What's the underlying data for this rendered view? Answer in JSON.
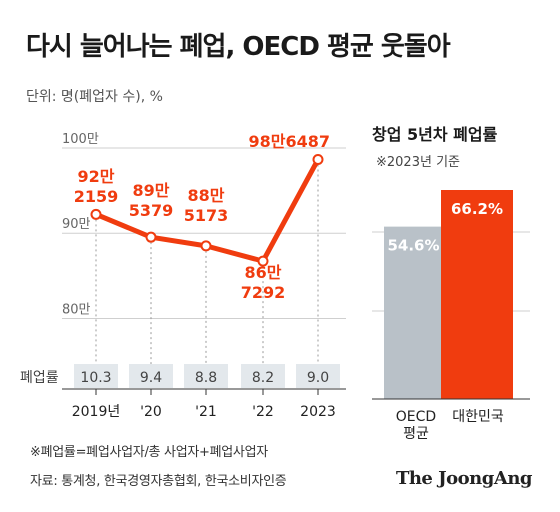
{
  "title": "다시 늘어나는 폐업, OECD 평균 웃돌아",
  "unit_label": "단위: 명(폐업자 수), %",
  "footnote": "※폐업률=폐업사업자/총 사업자+폐업사업자",
  "source": "자료: 통계청, 한국경영자총협회, 한국소비자인증",
  "brand": "The JoongAng",
  "colors": {
    "accent": "#f03c0f",
    "gray_bar": "#b9c1c8",
    "rate_box": "#e3e8ec",
    "grid": "#cfcfcf"
  },
  "chart_data": [
    {
      "type": "line",
      "categories": [
        "2019년",
        "'20",
        "'21",
        "'22",
        "2023"
      ],
      "series": [
        {
          "values": [
            922159,
            895379,
            885173,
            867292,
            986487
          ],
          "labels": [
            [
              "92만",
              "2159"
            ],
            [
              "89만",
              "5379"
            ],
            [
              "88만",
              "5173"
            ],
            [
              "86만",
              "7292"
            ],
            [
              "98만6487"
            ]
          ]
        }
      ],
      "ylim": [
        790000,
        1000000
      ],
      "yticks": [
        {
          "value": 1000000,
          "label": "100만"
        },
        {
          "value": 900000,
          "label": "90만"
        },
        {
          "value": 800000,
          "label": "80만"
        }
      ],
      "rate_row_label": "폐업률",
      "rates": [
        "10.3",
        "9.4",
        "8.8",
        "8.2",
        "9.0"
      ]
    },
    {
      "type": "bar",
      "title": "창업 5년차 폐업률",
      "subtitle": "※2023년 기준",
      "categories": [
        [
          "OECD",
          "평균"
        ],
        [
          "대한민국"
        ]
      ],
      "values": [
        54.6,
        66.2
      ],
      "value_labels": [
        "54.6%",
        "66.2%"
      ],
      "ylim": [
        0,
        66.2
      ]
    }
  ]
}
